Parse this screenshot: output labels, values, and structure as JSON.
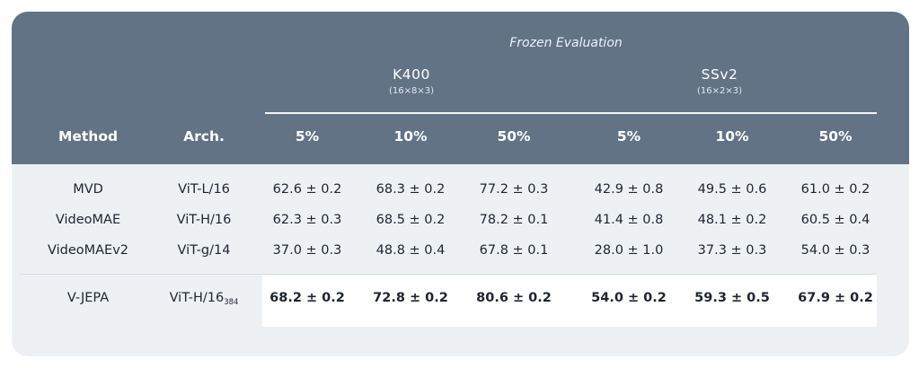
{
  "table": {
    "title": "Frozen Evaluation",
    "groups": [
      {
        "label": "K400",
        "sub": "(16×8×3)"
      },
      {
        "label": "SSv2",
        "sub": "(16×2×3)"
      }
    ],
    "columns": [
      "Method",
      "Arch.",
      "5%",
      "10%",
      "50%",
      "5%",
      "10%",
      "50%"
    ],
    "rows": [
      {
        "method": "MVD",
        "arch": "ViT-L/16",
        "arch_sub": "",
        "values": [
          "62.6 ± 0.2",
          "68.3 ± 0.2",
          "77.2 ± 0.3",
          "42.9 ± 0.8",
          "49.5 ± 0.6",
          "61.0 ± 0.2"
        ]
      },
      {
        "method": "VideoMAE",
        "arch": "ViT-H/16",
        "arch_sub": "",
        "values": [
          "62.3 ± 0.3",
          "68.5 ± 0.2",
          "78.2 ± 0.1",
          "41.4 ± 0.8",
          "48.1 ± 0.2",
          "60.5 ± 0.4"
        ]
      },
      {
        "method": "VideoMAEv2",
        "arch": "ViT-g/14",
        "arch_sub": "",
        "values": [
          "37.0 ± 0.3",
          "48.8 ± 0.4",
          "67.8 ± 0.1",
          "28.0 ± 1.0",
          "37.3 ± 0.3",
          "54.0 ± 0.3"
        ]
      },
      {
        "method": "V-JEPA",
        "arch": "ViT-H/16",
        "arch_sub": "384",
        "values": [
          "68.2 ± 0.2",
          "72.8 ± 0.2",
          "80.6 ± 0.2",
          "54.0 ± 0.2",
          "59.3 ± 0.5",
          "67.9 ± 0.2"
        ]
      }
    ]
  }
}
